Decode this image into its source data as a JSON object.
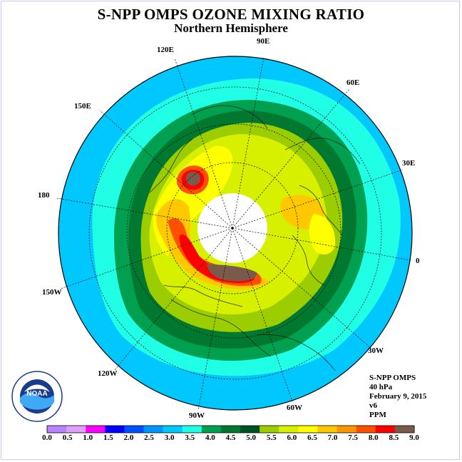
{
  "header": {
    "title": "S-NPP OMPS OZONE MIXING RATIO",
    "subtitle": "Northern Hemisphere"
  },
  "longitude_labels": [
    "90E",
    "60E",
    "30E",
    "0",
    "30W",
    "60W",
    "90W",
    "120W",
    "150W",
    "180",
    "150E",
    "120E"
  ],
  "info": {
    "instrument": "S-NPP OMPS",
    "pressure": "40 hPa",
    "date": "February 9, 2015",
    "version": "v6",
    "units": "PPM"
  },
  "colorbar": {
    "ticks": [
      "0.0",
      "0.5",
      "1.0",
      "1.5",
      "2.0",
      "2.5",
      "3.0",
      "3.5",
      "4.0",
      "4.5",
      "5.0",
      "5.5",
      "6.0",
      "6.5",
      "7.0",
      "7.5",
      "8.0",
      "8.5",
      "9.0"
    ],
    "colors": [
      "#b982ff",
      "#e0a0ff",
      "#ff00ff",
      "#0000ff",
      "#0050ff",
      "#0096ff",
      "#00c8ff",
      "#20ffe6",
      "#00a050",
      "#007830",
      "#005020",
      "#9ccd00",
      "#d6f000",
      "#ffff00",
      "#ffc800",
      "#ff9600",
      "#ff5000",
      "#ff0000",
      "#7a5a4a"
    ]
  },
  "logo": {
    "text": "NOAA",
    "icon": "noaa-logo-icon"
  }
}
